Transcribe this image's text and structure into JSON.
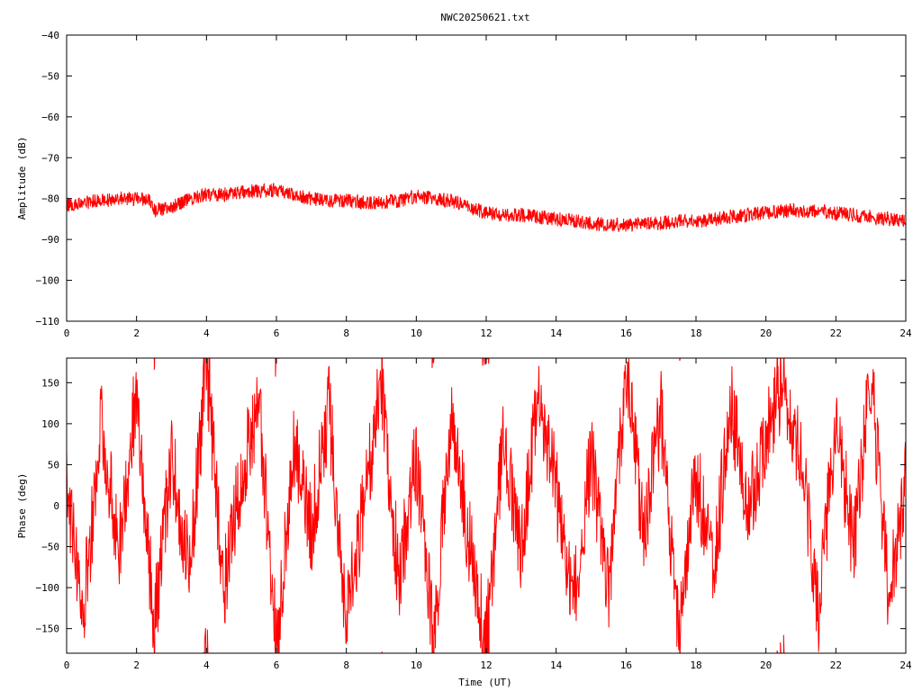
{
  "title": "NWC20250621.txt",
  "colors": {
    "series": "#ff0000",
    "axes": "#000000",
    "background": "#ffffff"
  },
  "chart_data": [
    {
      "type": "line",
      "title": "NWC20250621.txt",
      "xlabel": "",
      "ylabel": "Amplitude (dB)",
      "xlim": [
        0,
        24
      ],
      "ylim": [
        -110,
        -40
      ],
      "x_ticks": [
        "0",
        "2",
        "4",
        "6",
        "8",
        "10",
        "12",
        "14",
        "16",
        "18",
        "20",
        "22",
        "24"
      ],
      "y_ticks": [
        "-40",
        "-50",
        "-60",
        "-70",
        "-80",
        "-90",
        "-100",
        "-110"
      ],
      "grid": false,
      "legend": "none",
      "series": [
        {
          "x": [
            0,
            0.5,
            1,
            1.5,
            2,
            2.4,
            2.5,
            3,
            3.5,
            4,
            4.5,
            5,
            5.5,
            6,
            6.5,
            7,
            7.5,
            8,
            8.5,
            9,
            9.5,
            10,
            10.5,
            11,
            11.5,
            12,
            12.5,
            13,
            13.5,
            14,
            14.5,
            15,
            15.5,
            16,
            16.5,
            17,
            17.5,
            18,
            18.5,
            19,
            19.5,
            20,
            20.5,
            21,
            21.5,
            22,
            22.5,
            23,
            23.5,
            24
          ],
          "values": [
            -81.5,
            -81,
            -80.5,
            -80,
            -80,
            -80.5,
            -83,
            -82,
            -80,
            -79,
            -79,
            -78.5,
            -78,
            -78,
            -79,
            -80,
            -80.5,
            -80.5,
            -81,
            -81,
            -80.5,
            -79.5,
            -80,
            -80.5,
            -82,
            -83.5,
            -84,
            -84,
            -84.5,
            -85,
            -85.5,
            -86,
            -86.5,
            -86.5,
            -86,
            -86,
            -85.5,
            -85.5,
            -85,
            -84.5,
            -84,
            -83.5,
            -83,
            -83,
            -83,
            -83.5,
            -84,
            -84.5,
            -85,
            -85
          ],
          "noise_band_db": 3.5
        }
      ]
    },
    {
      "type": "line",
      "title": "",
      "xlabel": "Time (UT)",
      "ylabel": "Phase (deg)",
      "xlim": [
        0,
        24
      ],
      "ylim": [
        -180,
        180
      ],
      "x_ticks": [
        "0",
        "2",
        "4",
        "6",
        "8",
        "10",
        "12",
        "14",
        "16",
        "18",
        "20",
        "22",
        "24"
      ],
      "y_ticks": [
        "150",
        "100",
        "50",
        "0",
        "-50",
        "-100",
        "-150"
      ],
      "grid": false,
      "legend": "none",
      "series": [
        {
          "wrap": [
            -180,
            180
          ],
          "x": [
            0,
            0.5,
            1,
            1.5,
            2,
            2.5,
            3,
            3.5,
            4,
            4.5,
            5,
            5.5,
            6,
            6.5,
            7,
            7.5,
            8,
            8.5,
            9,
            9.5,
            10,
            10.5,
            11,
            11.5,
            12,
            12.5,
            13,
            13.5,
            14,
            14.5,
            15,
            15.5,
            16,
            16.5,
            17,
            17.5,
            18,
            18.5,
            19,
            19.5,
            20,
            20.5,
            21,
            21.5,
            22,
            22.5,
            23,
            23.5,
            24
          ],
          "values": [
            20,
            -120,
            100,
            -60,
            140,
            -150,
            60,
            -80,
            170,
            -100,
            40,
            130,
            -170,
            80,
            -30,
            120,
            -140,
            0,
            150,
            -90,
            60,
            -160,
            110,
            -40,
            -170,
            90,
            -60,
            140,
            20,
            -120,
            60,
            -100,
            170,
            -30,
            110,
            -150,
            40,
            -80,
            130,
            -10,
            90,
            150,
            60,
            -130,
            100,
            -50,
            160,
            -110,
            30
          ],
          "jitter_deg": 55
        }
      ]
    }
  ]
}
